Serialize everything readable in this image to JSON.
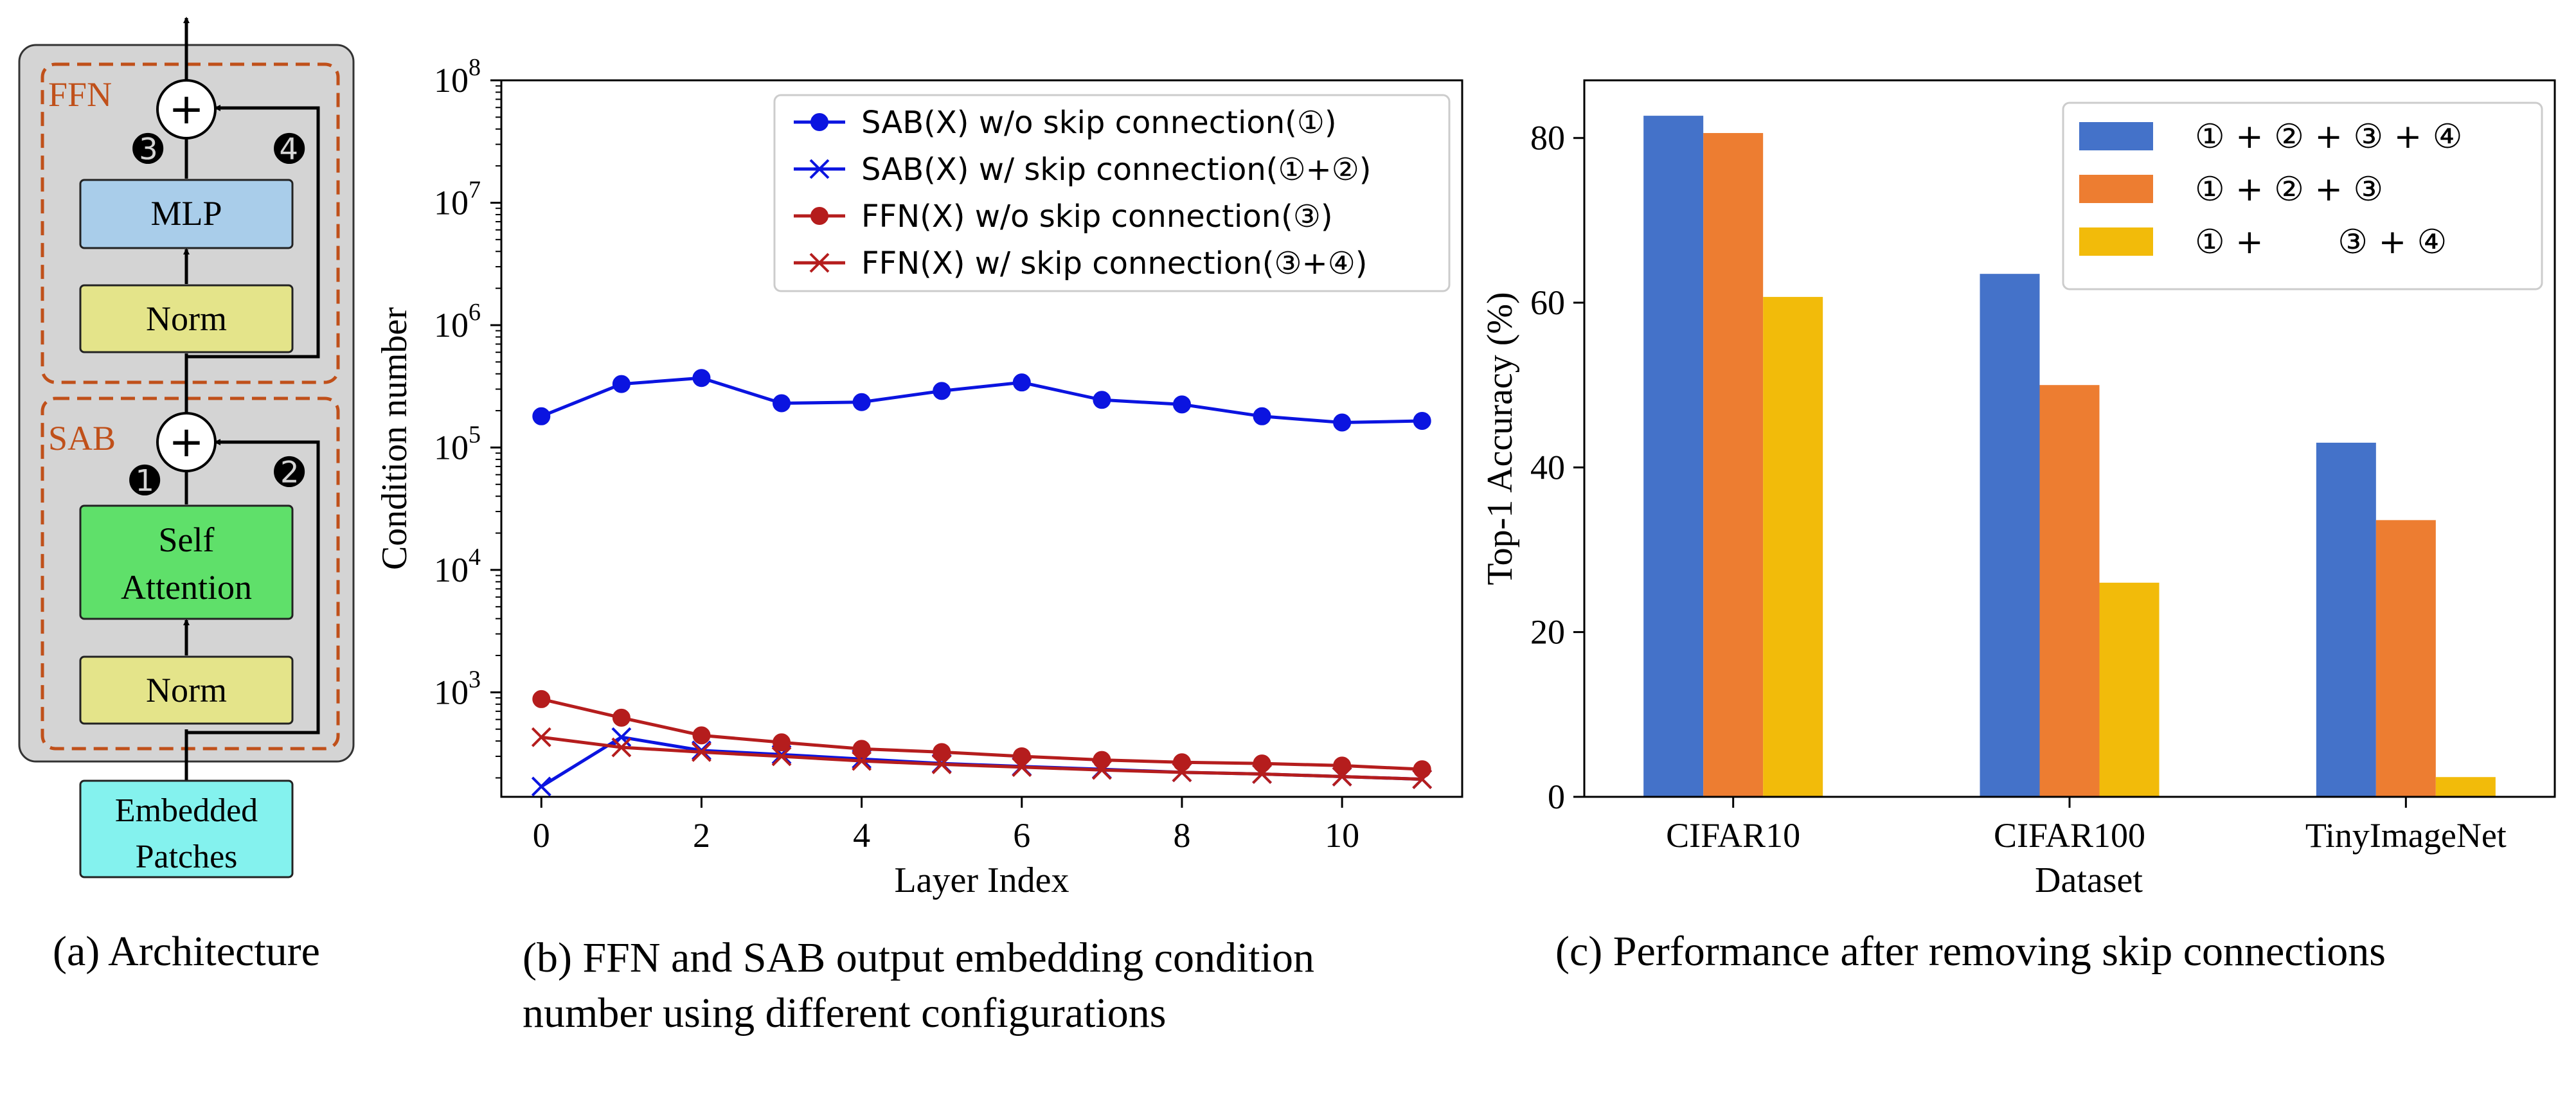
{
  "panel_a": {
    "caption": "(a) Architecture",
    "ffn_label": "FFN",
    "sab_label": "SAB",
    "mlp_label": "MLP",
    "norm_top_label": "Norm",
    "self_attention_line1": "Self",
    "self_attention_line2": "Attention",
    "norm_bottom_label": "Norm",
    "embedded_line1": "Embedded",
    "embedded_line2": "Patches",
    "plus_symbol": "+",
    "marker_1": "➊",
    "marker_2": "➋",
    "marker_3": "➌",
    "marker_4": "➍",
    "colors": {
      "ffn_sab_border": "#c0501a",
      "outer_box": "#d4d4d4",
      "mlp_box": "#a9cdea",
      "norm_box": "#e4e48a",
      "attention_box": "#5fe06a",
      "embedded_box": "#84f2ee"
    }
  },
  "panel_b": {
    "caption_line1": "(b) FFN and SAB output embedding condition",
    "caption_line2": "number using different configurations"
  },
  "panel_c": {
    "caption": "(c) Performance after removing skip connections"
  },
  "chart_data": [
    {
      "type": "line",
      "yscale": "log",
      "xlabel": "Layer Index",
      "ylabel": "Condition number",
      "x": [
        0,
        1,
        2,
        3,
        4,
        5,
        6,
        7,
        8,
        9,
        10,
        11
      ],
      "xticks": [
        0,
        2,
        4,
        6,
        8,
        10
      ],
      "xlim": [
        -0.5,
        11.5
      ],
      "ylim": [
        140,
        100000000
      ],
      "yticks": [
        {
          "value": 1000,
          "base": "10",
          "exp": "3"
        },
        {
          "value": 10000,
          "base": "10",
          "exp": "4"
        },
        {
          "value": 100000,
          "base": "10",
          "exp": "5"
        },
        {
          "value": 1000000,
          "base": "10",
          "exp": "6"
        },
        {
          "value": 10000000,
          "base": "10",
          "exp": "7"
        },
        {
          "value": 100000000,
          "base": "10",
          "exp": "8"
        }
      ],
      "legend_position": "top-right",
      "series": [
        {
          "name": "SAB(X) w/o skip connection(①)",
          "color": "#0b14e0",
          "marker": "o",
          "values": [
            180000,
            330000,
            370000,
            230000,
            235000,
            290000,
            340000,
            245000,
            225000,
            180000,
            160000,
            165000
          ]
        },
        {
          "name": "SAB(X) w/ skip connection(①+②)",
          "color": "#0b14e0",
          "marker": "x",
          "values": [
            170,
            430,
            335,
            310,
            285,
            262,
            248,
            235,
            222,
            215,
            205,
            195
          ]
        },
        {
          "name": "FFN(X) w/o skip connection(③)",
          "color": "#b51d1d",
          "marker": "o",
          "values": [
            880,
            620,
            445,
            390,
            345,
            325,
            300,
            280,
            268,
            262,
            252,
            235
          ]
        },
        {
          "name": "FFN(X) w/ skip connection(③+④)",
          "color": "#b51d1d",
          "marker": "x",
          "values": [
            430,
            355,
            325,
            300,
            275,
            258,
            245,
            232,
            222,
            215,
            205,
            195
          ]
        }
      ]
    },
    {
      "type": "bar",
      "xlabel": "Dataset",
      "ylabel": "Top-1 Accuracy (%)",
      "categories": [
        "CIFAR10",
        "CIFAR100",
        "TinyImageNet"
      ],
      "ylim": [
        0,
        87
      ],
      "yticks": [
        0,
        20,
        40,
        60,
        80
      ],
      "legend_position": "top-right",
      "series": [
        {
          "name": "① + ② + ③ + ④",
          "color": "#4472c9",
          "values": [
            82.7,
            63.5,
            43.0
          ]
        },
        {
          "name": "① + ② + ③",
          "color": "#ed7d31",
          "values": [
            80.6,
            50.0,
            33.6
          ]
        },
        {
          "name": "① +       ③ + ④",
          "color": "#f2bb0a",
          "values": [
            60.7,
            26.0,
            2.4
          ]
        }
      ]
    }
  ]
}
